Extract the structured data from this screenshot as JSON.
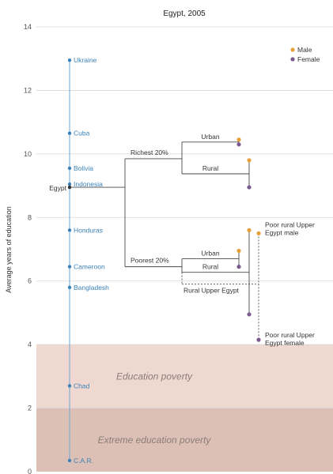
{
  "chart_data": {
    "type": "scatter",
    "title": "Egypt, 2005",
    "ylabel": "Average years of education",
    "ylim": [
      0,
      14
    ],
    "yticks": [
      0,
      2,
      4,
      6,
      8,
      10,
      12,
      14
    ],
    "grid": true,
    "legend": {
      "placement": "top-right",
      "items": [
        {
          "name": "Male",
          "color": "#e6a03a"
        },
        {
          "name": "Female",
          "color": "#7b5a8f"
        }
      ]
    },
    "bands": [
      {
        "label": "Education poverty",
        "from": 2,
        "to": 4,
        "color": "#efd8d0"
      },
      {
        "label": "Extreme education poverty",
        "from": 0,
        "to": 2,
        "color": "#dcc0b6"
      }
    ],
    "countries": [
      {
        "name": "Ukraine",
        "value": 12.95
      },
      {
        "name": "Cuba",
        "value": 10.65
      },
      {
        "name": "Bolivia",
        "value": 9.55
      },
      {
        "name": "Indonesia",
        "value": 9.05
      },
      {
        "name": "Honduras",
        "value": 7.6
      },
      {
        "name": "Cameroon",
        "value": 6.45
      },
      {
        "name": "Bangladesh",
        "value": 5.8
      },
      {
        "name": "Chad",
        "value": 2.7
      },
      {
        "name": "C.A.R.",
        "value": 0.35
      }
    ],
    "egypt": {
      "label": "Egypt",
      "value": 8.95
    },
    "groups": [
      {
        "label": "Richest 20%",
        "value": 9.85
      },
      {
        "label": "Poorest 20%",
        "value": 6.45
      }
    ],
    "subgroups": [
      {
        "label": "Urban",
        "male": 10.45,
        "female": 10.3
      },
      {
        "label": "Rural",
        "male": 9.8,
        "female": 8.95
      },
      {
        "label": "Urban",
        "male": 6.95,
        "female": 6.45
      },
      {
        "label": "Rural",
        "male": 7.6,
        "female": 4.95
      }
    ],
    "rural_upper_egypt": {
      "label": "Rural Upper Egypt",
      "value": 5.9
    },
    "poor_rural_upper_egypt": [
      {
        "label": "Poor rural Upper Egypt male",
        "value": 7.5,
        "sex": "male"
      },
      {
        "label": "Poor rural Upper Egypt female",
        "value": 4.15,
        "sex": "female"
      }
    ]
  }
}
